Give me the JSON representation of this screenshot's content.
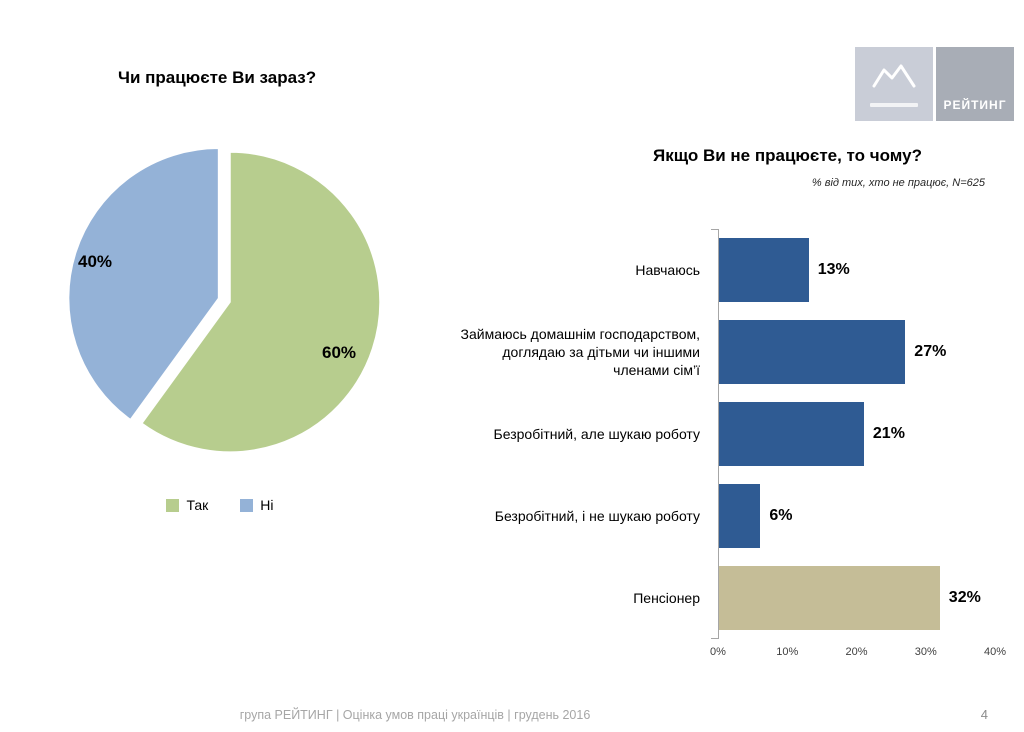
{
  "logos": {
    "rating_label": "РЕЙТИНГ"
  },
  "chart_data": [
    {
      "type": "pie",
      "title": "Чи працюєте Ви зараз?",
      "labels": [
        "Так",
        "Ні"
      ],
      "values": [
        60,
        40
      ],
      "data_labels": [
        "60%",
        "40%"
      ],
      "colors": [
        "#b7cd8e",
        "#94b2d7"
      ],
      "legend_position": "bottom",
      "exploded_slice": "Ні"
    },
    {
      "type": "bar",
      "orientation": "horizontal",
      "title": "Якщо Ви не працюєте, то чому?",
      "subtitle": "% від тих, хто не працює, N=625",
      "categories": [
        "Навчаюсь",
        "Займаюсь домашнім господарством, доглядаю за дітьми чи іншими членами сім’ї",
        "Безробітний, але шукаю роботу",
        "Безробітний, і не шукаю роботу",
        "Пенсіонер"
      ],
      "values": [
        13,
        27,
        21,
        6,
        32
      ],
      "data_labels": [
        "13%",
        "27%",
        "21%",
        "6%",
        "32%"
      ],
      "colors": [
        "#2f5b93",
        "#2f5b93",
        "#2f5b93",
        "#2f5b93",
        "#c5bd97"
      ],
      "x_ticks": [
        "0%",
        "10%",
        "20%",
        "30%",
        "40%"
      ],
      "xlim": [
        0,
        40
      ],
      "grid": false
    }
  ],
  "footer": {
    "text": "група РЕЙТИНГ  |  Оцінка умов праці українців  |  грудень 2016",
    "page_number": "4"
  }
}
